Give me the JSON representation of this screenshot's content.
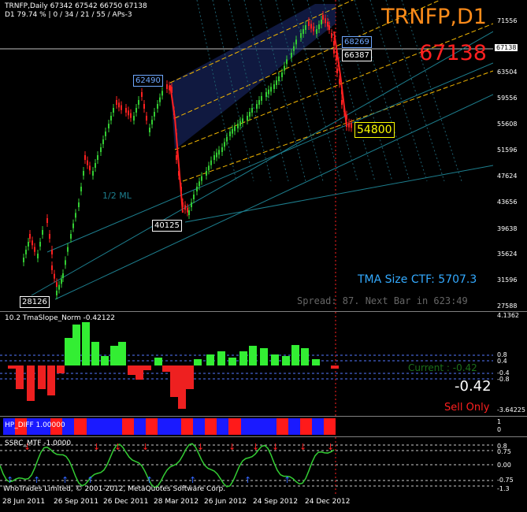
{
  "main": {
    "header_line1": "TRNFP,Daily  67342 67542 66750 67138",
    "header_line2": "D1  79.74 % | 0 / 34 / 21 / 55 / APs-3",
    "symbol_title": "TRNFP,D1",
    "last_price_big": "67138",
    "tma_label": "TMA Size CTF: 5707.3",
    "spread_label": "Spread: 87. Next Bar in 623:49",
    "ml_label": "1/2 ML",
    "price_boxes": [
      "62490",
      "40125",
      "28126",
      "68269",
      "66387",
      "54800"
    ],
    "price_scale": [
      "71556",
      "67138",
      "63504",
      "59556",
      "55608",
      "51596",
      "47624",
      "43656",
      "39638",
      "35624",
      "31596",
      "27588"
    ],
    "colors": {
      "up": "#33cc33",
      "down": "#ff2020",
      "fork": "#f5b800",
      "title": "#ff8c1a",
      "price": "#ff2020",
      "tma": "#33aaff"
    }
  },
  "tma": {
    "header": "10.2 TmaSlope_Norm -0.42122",
    "current_label": "Current : -0.42",
    "value_big": "-0.42",
    "signal": "Sell Only",
    "scale": [
      "4.1362",
      "0.8",
      "0.4",
      "-0.4",
      "-0.8",
      "-3.64225"
    ]
  },
  "hp": {
    "header": "HP_DIFF 1.00000",
    "scale": [
      "1",
      "0"
    ],
    "segments": [
      "b",
      "r",
      "b",
      "b",
      "r",
      "b",
      "r",
      "b",
      "b",
      "b",
      "r",
      "b",
      "r",
      "b",
      "b",
      "r",
      "b",
      "r",
      "b",
      "r",
      "b",
      "b",
      "b",
      "r",
      "b",
      "r",
      "b",
      "r"
    ]
  },
  "ssrc": {
    "header": "SSRC_MTF -1.0000",
    "scale": [
      "0.8",
      "0.75",
      "0.00",
      "-0.75",
      "-1.3"
    ]
  },
  "footer": {
    "copyright": "WhoTrades Limited, © 2001-2012, MetaQuotes Software Corp.",
    "dates": [
      "28 Jun 2011",
      "26 Sep 2011",
      "26 Dec 2011",
      "28 Mar 2012",
      "26 Jun 2012",
      "24 Sep 2012",
      "24 Dec 2012"
    ]
  }
}
